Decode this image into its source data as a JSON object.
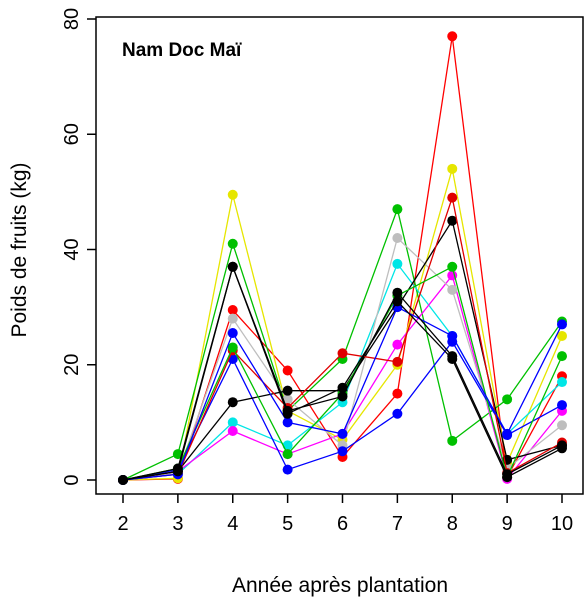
{
  "chart_data": {
    "type": "line",
    "title": "Nam Doc Maï",
    "xlabel": "Année après plantation",
    "ylabel": "Poids de fruits (kg)",
    "x": [
      2,
      3,
      4,
      5,
      6,
      7,
      8,
      9,
      10
    ],
    "xlim": [
      2,
      10
    ],
    "ylim": [
      0,
      80
    ],
    "x_ticks": [
      "2",
      "3",
      "4",
      "5",
      "6",
      "7",
      "8",
      "9",
      "10"
    ],
    "y_ticks": [
      "0",
      "20",
      "40",
      "60",
      "80"
    ],
    "grid": false,
    "legend": "none",
    "series": [
      {
        "color": "#ff0000",
        "values": [
          0,
          0.2,
          29.5,
          19,
          4,
          15,
          77,
          0.5,
          18
        ]
      },
      {
        "color": "#e6e600",
        "values": [
          0,
          0.3,
          49.5,
          12,
          7,
          20,
          54,
          3,
          25
        ]
      },
      {
        "color": "#00c000",
        "values": [
          0,
          4.5,
          41,
          12,
          21,
          47,
          6.8,
          14,
          27.5
        ]
      },
      {
        "color": "#00e6e6",
        "values": [
          0,
          1,
          10,
          6,
          13.5,
          37.5,
          25,
          8,
          17
        ]
      },
      {
        "color": "#ff00ff",
        "values": [
          0,
          1.5,
          8.5,
          4.5,
          8,
          23.5,
          35.5,
          0.2,
          12
        ]
      },
      {
        "color": "#bebebe",
        "values": [
          0,
          1.2,
          28,
          14,
          6,
          42,
          33,
          2,
          9.5
        ]
      },
      {
        "color": "#0000ff",
        "values": [
          0,
          1.8,
          21,
          1.8,
          5,
          11.5,
          24,
          7.8,
          13
        ]
      },
      {
        "color": "#000000",
        "values": [
          0,
          1.5,
          13.5,
          15.5,
          15.5,
          30,
          45,
          3.5,
          6
        ]
      },
      {
        "color": "#e00000",
        "values": [
          0,
          1,
          22.5,
          12.5,
          22,
          20.5,
          49,
          1.2,
          6.5
        ]
      },
      {
        "color": "#00c000",
        "values": [
          0,
          2,
          23,
          4.5,
          15,
          32,
          37,
          0.5,
          21.5
        ]
      },
      {
        "color": "#0000ff",
        "values": [
          0,
          1,
          25.5,
          10,
          8,
          30,
          25,
          8,
          27
        ]
      },
      {
        "color": "#000000",
        "values": [
          0,
          2,
          37,
          11.5,
          16,
          31,
          21,
          0.5,
          5.5
        ]
      },
      {
        "color": "#000000",
        "values": [
          0,
          1.5,
          37,
          12,
          14.5,
          32.5,
          21.5,
          1,
          6
        ]
      }
    ]
  }
}
